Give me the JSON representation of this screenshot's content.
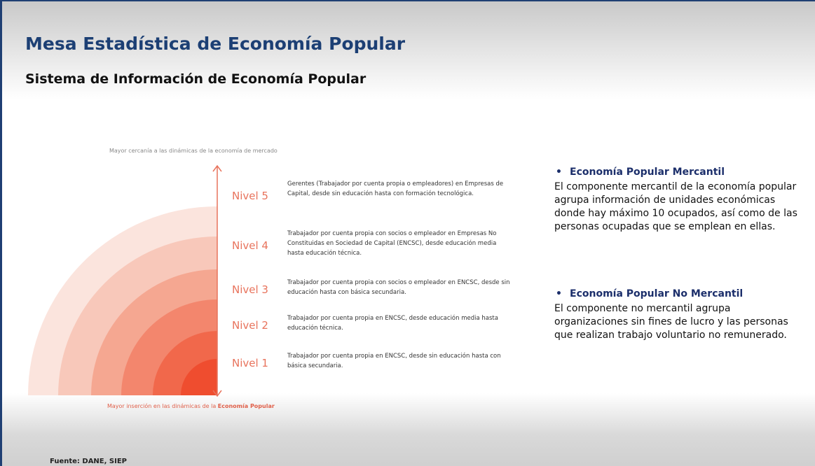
{
  "header": {
    "title": "Mesa Estadística de Economía Popular",
    "subtitle": "Sistema de Información de Economía Popular"
  },
  "diagram": {
    "top_label": "Mayor cercanía a las dinámicas de la economía de mercado",
    "bottom_label_prefix": "Mayor inserción en las dinámicas de la",
    "bottom_label_highlight": "Economía Popular",
    "levels": [
      {
        "name": "Nivel 5",
        "description": "Gerentes (Trabajador por cuenta propia o empleadores) en Empresas de Capital, desde sin educación hasta con formación tecnológica."
      },
      {
        "name": "Nivel 4",
        "description": "Trabajador por cuenta propia con socios o empleador en Empresas No Constituidas en Sociedad de Capital (ENCSC), desde educación media hasta educación técnica."
      },
      {
        "name": "Nivel 3",
        "description": "Trabajador por cuenta propia con socios o empleador en ENCSC, desde sin educación hasta con básica secundaria."
      },
      {
        "name": "Nivel 2",
        "description": "Trabajador por cuenta propia en ENCSC, desde educación media hasta educación técnica."
      },
      {
        "name": "Nivel 1",
        "description": "Trabajador por cuenta propia en ENCSC, desde sin educación hasta con básica secundaria."
      }
    ]
  },
  "sections": [
    {
      "title": "Economía Popular Mercantil",
      "body": "El componente mercantil de la economía popular agrupa información de unidades económicas donde hay máximo 10 ocupados, así como de las personas ocupadas que se emplean en ellas."
    },
    {
      "title": "Economía Popular No Mercantil",
      "body": "El componente no mercantil agrupa organizaciones sin fines de lucro y las personas que realizan trabajo voluntario no remunerado."
    }
  ],
  "footer": {
    "source": "Fuente: DANE, SIEP"
  }
}
